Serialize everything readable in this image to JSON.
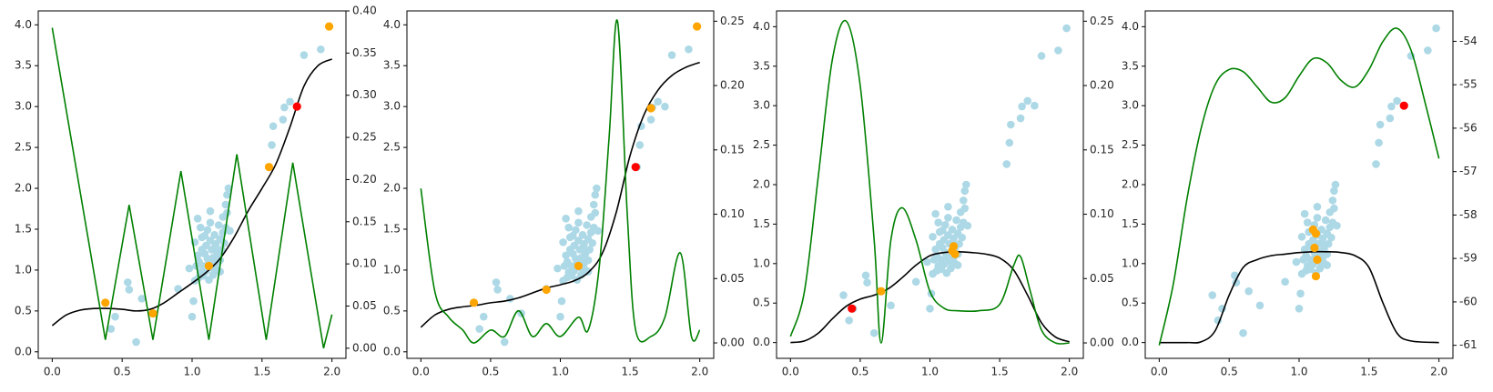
{
  "chart_data": [
    {
      "type": "scatter",
      "subplot": 1,
      "x_ticks": [
        "0.0",
        "0.5",
        "1.0",
        "1.5",
        "2.0"
      ],
      "y_left_ticks": [
        "0.0",
        "0.5",
        "1.0",
        "1.5",
        "2.0",
        "2.5",
        "3.0",
        "3.5",
        "4.0"
      ],
      "y_right_ticks": [
        "0.00",
        "0.05",
        "0.10",
        "0.15",
        "0.20",
        "0.25",
        "0.30",
        "0.35",
        "0.40"
      ],
      "xlim": [
        -0.1,
        2.1
      ],
      "ylim_left": [
        -0.08,
        4.17
      ],
      "ylim_right": [
        -0.012,
        0.4
      ],
      "orange_points": [
        [
          0.38,
          0.6
        ],
        [
          0.72,
          0.47
        ],
        [
          1.12,
          1.05
        ],
        [
          1.55,
          2.26
        ],
        [
          1.98,
          3.98
        ]
      ],
      "red_points": [
        [
          1.75,
          3.0
        ]
      ],
      "black_curve": [
        [
          0,
          0.32
        ],
        [
          0.1,
          0.45
        ],
        [
          0.2,
          0.51
        ],
        [
          0.3,
          0.53
        ],
        [
          0.4,
          0.53
        ],
        [
          0.5,
          0.52
        ],
        [
          0.6,
          0.5
        ],
        [
          0.7,
          0.52
        ],
        [
          0.8,
          0.6
        ],
        [
          0.9,
          0.72
        ],
        [
          1.0,
          0.84
        ],
        [
          1.1,
          0.97
        ],
        [
          1.2,
          1.14
        ],
        [
          1.3,
          1.4
        ],
        [
          1.4,
          1.72
        ],
        [
          1.5,
          2.0
        ],
        [
          1.6,
          2.3
        ],
        [
          1.7,
          2.75
        ],
        [
          1.8,
          3.25
        ],
        [
          1.9,
          3.5
        ],
        [
          2.0,
          3.58
        ]
      ],
      "green_curve_right_axis": [
        [
          0,
          0.38
        ],
        [
          0.38,
          0.01
        ],
        [
          0.55,
          0.17
        ],
        [
          0.72,
          0.01
        ],
        [
          0.92,
          0.21
        ],
        [
          1.12,
          0.01
        ],
        [
          1.32,
          0.23
        ],
        [
          1.53,
          0.01
        ],
        [
          1.72,
          0.22
        ],
        [
          1.94,
          0.0
        ],
        [
          2.0,
          0.04
        ]
      ]
    },
    {
      "type": "scatter",
      "subplot": 2,
      "x_ticks": [
        "0.0",
        "0.5",
        "1.0",
        "1.5",
        "2.0"
      ],
      "y_left_ticks": [
        "0.0",
        "0.5",
        "1.0",
        "1.5",
        "2.0",
        "2.5",
        "3.0",
        "3.5",
        "4.0"
      ],
      "y_right_ticks": [
        "0.00",
        "0.05",
        "0.10",
        "0.15",
        "0.20",
        "0.25"
      ],
      "xlim": [
        -0.1,
        2.1
      ],
      "ylim_left": [
        -0.08,
        4.17
      ],
      "ylim_right": [
        -0.012,
        0.258
      ],
      "orange_points": [
        [
          0.38,
          0.6
        ],
        [
          0.9,
          0.76
        ],
        [
          1.13,
          1.05
        ],
        [
          1.65,
          2.98
        ],
        [
          1.98,
          3.98
        ]
      ],
      "red_points": [
        [
          1.54,
          2.26
        ]
      ],
      "black_curve": [
        [
          0,
          0.3
        ],
        [
          0.1,
          0.45
        ],
        [
          0.2,
          0.52
        ],
        [
          0.3,
          0.55
        ],
        [
          0.4,
          0.57
        ],
        [
          0.5,
          0.6
        ],
        [
          0.6,
          0.62
        ],
        [
          0.7,
          0.66
        ],
        [
          0.8,
          0.72
        ],
        [
          0.9,
          0.78
        ],
        [
          1.0,
          0.82
        ],
        [
          1.1,
          0.87
        ],
        [
          1.2,
          0.97
        ],
        [
          1.3,
          1.2
        ],
        [
          1.4,
          1.7
        ],
        [
          1.5,
          2.4
        ],
        [
          1.6,
          2.9
        ],
        [
          1.7,
          3.2
        ],
        [
          1.8,
          3.38
        ],
        [
          1.9,
          3.48
        ],
        [
          2.0,
          3.54
        ]
      ],
      "green_curve_right_axis": [
        [
          0,
          0.12
        ],
        [
          0.1,
          0.04
        ],
        [
          0.2,
          0.02
        ],
        [
          0.3,
          0.01
        ],
        [
          0.38,
          0.0
        ],
        [
          0.5,
          0.01
        ],
        [
          0.6,
          0.005
        ],
        [
          0.7,
          0.025
        ],
        [
          0.8,
          0.005
        ],
        [
          0.9,
          0.015
        ],
        [
          1.0,
          0.005
        ],
        [
          1.13,
          0.02
        ],
        [
          1.2,
          0.01
        ],
        [
          1.28,
          0.06
        ],
        [
          1.35,
          0.16
        ],
        [
          1.41,
          0.25
        ],
        [
          1.48,
          0.1
        ],
        [
          1.54,
          0.01
        ],
        [
          1.65,
          0.005
        ],
        [
          1.75,
          0.02
        ],
        [
          1.86,
          0.07
        ],
        [
          1.94,
          0.005
        ],
        [
          2.0,
          0.01
        ]
      ]
    },
    {
      "type": "scatter",
      "subplot": 3,
      "x_ticks": [
        "0.0",
        "0.5",
        "1.0",
        "1.5",
        "2.0"
      ],
      "y_left_ticks": [
        "0.0",
        "0.5",
        "1.0",
        "1.5",
        "2.0",
        "2.5",
        "3.0",
        "3.5",
        "4.0"
      ],
      "y_right_ticks": [
        "0.00",
        "0.05",
        "0.10",
        "0.15",
        "0.20",
        "0.25"
      ],
      "xlim": [
        -0.1,
        2.1
      ],
      "ylim_left": [
        -0.2,
        4.2
      ],
      "ylim_right": [
        -0.012,
        0.258
      ],
      "orange_points": [
        [
          0.65,
          0.65
        ],
        [
          1.16,
          1.16
        ],
        [
          1.17,
          1.22
        ],
        [
          1.18,
          1.12
        ]
      ],
      "red_points": [
        [
          0.44,
          0.43
        ]
      ],
      "black_curve": [
        [
          0,
          0.0
        ],
        [
          0.1,
          0.02
        ],
        [
          0.2,
          0.12
        ],
        [
          0.3,
          0.3
        ],
        [
          0.4,
          0.46
        ],
        [
          0.5,
          0.55
        ],
        [
          0.6,
          0.6
        ],
        [
          0.7,
          0.68
        ],
        [
          0.8,
          0.82
        ],
        [
          0.9,
          0.98
        ],
        [
          1.0,
          1.1
        ],
        [
          1.1,
          1.14
        ],
        [
          1.2,
          1.15
        ],
        [
          1.3,
          1.14
        ],
        [
          1.4,
          1.12
        ],
        [
          1.5,
          1.07
        ],
        [
          1.6,
          0.92
        ],
        [
          1.7,
          0.6
        ],
        [
          1.8,
          0.25
        ],
        [
          1.9,
          0.07
        ],
        [
          2.0,
          0.01
        ]
      ],
      "green_curve_right_axis": [
        [
          0,
          0.005
        ],
        [
          0.1,
          0.04
        ],
        [
          0.2,
          0.13
        ],
        [
          0.3,
          0.22
        ],
        [
          0.4,
          0.25
        ],
        [
          0.5,
          0.2
        ],
        [
          0.6,
          0.08
        ],
        [
          0.65,
          0.0
        ],
        [
          0.72,
          0.08
        ],
        [
          0.8,
          0.105
        ],
        [
          0.9,
          0.08
        ],
        [
          1.0,
          0.04
        ],
        [
          1.1,
          0.027
        ],
        [
          1.2,
          0.025
        ],
        [
          1.35,
          0.025
        ],
        [
          1.5,
          0.03
        ],
        [
          1.6,
          0.06
        ],
        [
          1.65,
          0.067
        ],
        [
          1.72,
          0.04
        ],
        [
          1.8,
          0.01
        ],
        [
          1.9,
          0.0
        ],
        [
          2.0,
          0.0
        ]
      ]
    },
    {
      "type": "scatter",
      "subplot": 4,
      "x_ticks": [
        "0.0",
        "0.5",
        "1.0",
        "1.5",
        "2.0"
      ],
      "y_left_ticks": [
        "0.0",
        "0.5",
        "1.0",
        "1.5",
        "2.0",
        "2.5",
        "3.0",
        "3.5",
        "4.0"
      ],
      "y_right_ticks": [
        "-61",
        "-60",
        "-59",
        "-58",
        "-57",
        "-56",
        "-55",
        "-54"
      ],
      "xlim": [
        -0.1,
        2.1
      ],
      "ylim_left": [
        -0.2,
        4.2
      ],
      "ylim_right": [
        -61.3,
        -53.3
      ],
      "orange_points": [
        [
          1.1,
          1.43
        ],
        [
          1.12,
          1.38
        ],
        [
          1.11,
          1.2
        ],
        [
          1.13,
          1.05
        ],
        [
          1.12,
          0.84
        ]
      ],
      "red_points": [
        [
          1.75,
          3.0
        ]
      ],
      "black_curve": [
        [
          0,
          0.0
        ],
        [
          0.2,
          0.0
        ],
        [
          0.3,
          0.01
        ],
        [
          0.4,
          0.15
        ],
        [
          0.5,
          0.6
        ],
        [
          0.6,
          0.95
        ],
        [
          0.7,
          1.05
        ],
        [
          0.8,
          1.1
        ],
        [
          0.9,
          1.12
        ],
        [
          1.0,
          1.14
        ],
        [
          1.1,
          1.15
        ],
        [
          1.2,
          1.15
        ],
        [
          1.3,
          1.14
        ],
        [
          1.4,
          1.1
        ],
        [
          1.5,
          0.95
        ],
        [
          1.6,
          0.5
        ],
        [
          1.7,
          0.12
        ],
        [
          1.8,
          0.02
        ],
        [
          2.0,
          0.0
        ]
      ],
      "green_curve_right_axis": [
        [
          0,
          -61.0
        ],
        [
          0.1,
          -59.6
        ],
        [
          0.2,
          -57.6
        ],
        [
          0.3,
          -56.0
        ],
        [
          0.4,
          -55.0
        ],
        [
          0.5,
          -54.65
        ],
        [
          0.6,
          -54.7
        ],
        [
          0.7,
          -55.05
        ],
        [
          0.8,
          -55.4
        ],
        [
          0.9,
          -55.3
        ],
        [
          1.0,
          -54.8
        ],
        [
          1.1,
          -54.4
        ],
        [
          1.2,
          -54.5
        ],
        [
          1.3,
          -54.9
        ],
        [
          1.4,
          -55.05
        ],
        [
          1.5,
          -54.65
        ],
        [
          1.6,
          -54.0
        ],
        [
          1.7,
          -53.7
        ],
        [
          1.8,
          -54.2
        ],
        [
          1.9,
          -55.4
        ],
        [
          2.0,
          -56.7
        ]
      ]
    }
  ],
  "scatter_data": [
    [
      0.38,
      0.6
    ],
    [
      0.42,
      0.28
    ],
    [
      0.45,
      0.43
    ],
    [
      0.54,
      0.85
    ],
    [
      0.55,
      0.76
    ],
    [
      0.6,
      0.12
    ],
    [
      0.64,
      0.65
    ],
    [
      0.72,
      0.47
    ],
    [
      0.9,
      0.77
    ],
    [
      0.98,
      1.02
    ],
    [
      1.0,
      0.43
    ],
    [
      1.01,
      0.62
    ],
    [
      1.02,
      0.87
    ],
    [
      1.02,
      1.34
    ],
    [
      1.03,
      1.05
    ],
    [
      1.04,
      1.18
    ],
    [
      1.04,
      1.63
    ],
    [
      1.05,
      0.91
    ],
    [
      1.05,
      1.1
    ],
    [
      1.06,
      0.97
    ],
    [
      1.07,
      1.25
    ],
    [
      1.07,
      1.4
    ],
    [
      1.08,
      0.93
    ],
    [
      1.08,
      1.05
    ],
    [
      1.09,
      1.2
    ],
    [
      1.1,
      0.99
    ],
    [
      1.1,
      1.3
    ],
    [
      1.11,
      1.14
    ],
    [
      1.11,
      1.49
    ],
    [
      1.12,
      0.88
    ],
    [
      1.12,
      1.08
    ],
    [
      1.13,
      1.36
    ],
    [
      1.13,
      1.72
    ],
    [
      1.14,
      1.03
    ],
    [
      1.14,
      1.25
    ],
    [
      1.15,
      0.94
    ],
    [
      1.15,
      1.15
    ],
    [
      1.16,
      1.43
    ],
    [
      1.17,
      1.08
    ],
    [
      1.17,
      1.32
    ],
    [
      1.18,
      1.0
    ],
    [
      1.18,
      1.2
    ],
    [
      1.19,
      1.55
    ],
    [
      1.2,
      1.12
    ],
    [
      1.2,
      1.38
    ],
    [
      1.21,
      1.25
    ],
    [
      1.22,
      1.46
    ],
    [
      1.22,
      1.65
    ],
    [
      1.23,
      1.33
    ],
    [
      1.24,
      1.8
    ],
    [
      1.24,
      1.52
    ],
    [
      1.25,
      1.7
    ],
    [
      1.25,
      1.92
    ],
    [
      1.26,
      2.0
    ],
    [
      1.27,
      1.48
    ],
    [
      1.2,
      0.98
    ],
    [
      1.16,
      1.27
    ],
    [
      1.09,
      1.42
    ],
    [
      1.06,
      1.52
    ],
    [
      1.13,
      1.58
    ],
    [
      1.55,
      2.26
    ],
    [
      1.57,
      2.53
    ],
    [
      1.58,
      2.76
    ],
    [
      1.65,
      2.84
    ],
    [
      1.66,
      2.99
    ],
    [
      1.7,
      3.06
    ],
    [
      1.75,
      3.0
    ],
    [
      1.8,
      3.63
    ],
    [
      1.92,
      3.7
    ],
    [
      1.98,
      3.98
    ]
  ],
  "colors": {
    "scatter": "#add8e6",
    "orange": "#ffa500",
    "red": "#ff0000",
    "black": "#000000",
    "green": "#008000",
    "spine": "#000000",
    "tick_text": "#262626"
  }
}
